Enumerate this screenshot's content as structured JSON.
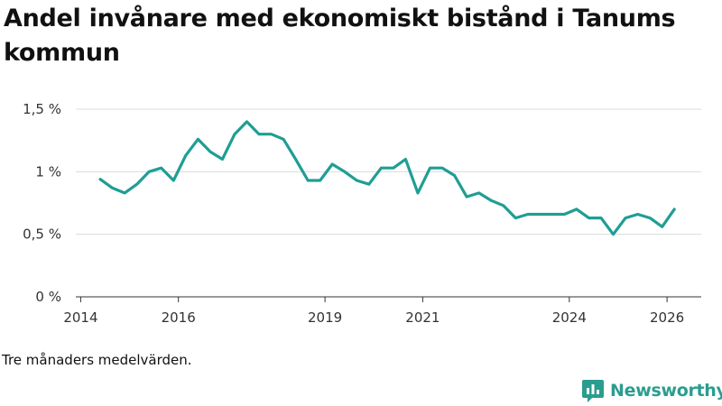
{
  "chart_data": {
    "type": "line",
    "title": "Andel invånare med ekonomiskt bistånd i Tanums kommun",
    "note": "Tre månaders medelvärden.",
    "xlabel": "",
    "ylabel": "",
    "xlim": [
      2013.9,
      2026.7
    ],
    "ylim": [
      0,
      1.5
    ],
    "yticks": [
      0,
      0.5,
      1,
      1.5
    ],
    "ytick_labels": [
      "0 %",
      "0,5 %",
      "1 %",
      "1,5 %"
    ],
    "xticks": [
      2014,
      2016,
      2019,
      2021,
      2024,
      2026
    ],
    "xtick_labels": [
      "2014",
      "2016",
      "2019",
      "2021",
      "2024",
      "2026"
    ],
    "color": "#1f9e94",
    "series": [
      {
        "name": "Andel invånare med ekonomiskt bistånd",
        "x": [
          2014.4,
          2014.65,
          2014.9,
          2015.15,
          2015.4,
          2015.65,
          2015.9,
          2016.15,
          2016.4,
          2016.65,
          2016.9,
          2017.15,
          2017.4,
          2017.65,
          2017.9,
          2018.15,
          2018.4,
          2018.65,
          2018.9,
          2019.15,
          2019.4,
          2019.65,
          2019.9,
          2020.15,
          2020.4,
          2020.65,
          2020.9,
          2021.15,
          2021.4,
          2021.65,
          2021.9,
          2022.15,
          2022.4,
          2022.65,
          2022.9,
          2023.15,
          2023.4,
          2023.65,
          2023.9,
          2024.15,
          2024.4,
          2024.65,
          2024.9,
          2025.15,
          2025.4,
          2025.65,
          2025.9,
          2026.15
        ],
        "values": [
          0.94,
          0.87,
          0.83,
          0.9,
          1.0,
          1.03,
          0.93,
          1.13,
          1.26,
          1.16,
          1.1,
          1.3,
          1.4,
          1.3,
          1.3,
          1.26,
          1.1,
          0.93,
          0.93,
          1.06,
          1.0,
          0.93,
          0.9,
          1.03,
          1.03,
          1.1,
          0.83,
          1.03,
          1.03,
          0.97,
          0.8,
          0.83,
          0.77,
          0.73,
          0.63,
          0.66,
          0.66,
          0.66,
          0.66,
          0.7,
          0.63,
          0.63,
          0.5,
          0.63,
          0.66,
          0.63,
          0.56,
          0.7
        ]
      }
    ]
  },
  "brand": {
    "name": "Newsworthy",
    "color": "#2a9d8f"
  }
}
